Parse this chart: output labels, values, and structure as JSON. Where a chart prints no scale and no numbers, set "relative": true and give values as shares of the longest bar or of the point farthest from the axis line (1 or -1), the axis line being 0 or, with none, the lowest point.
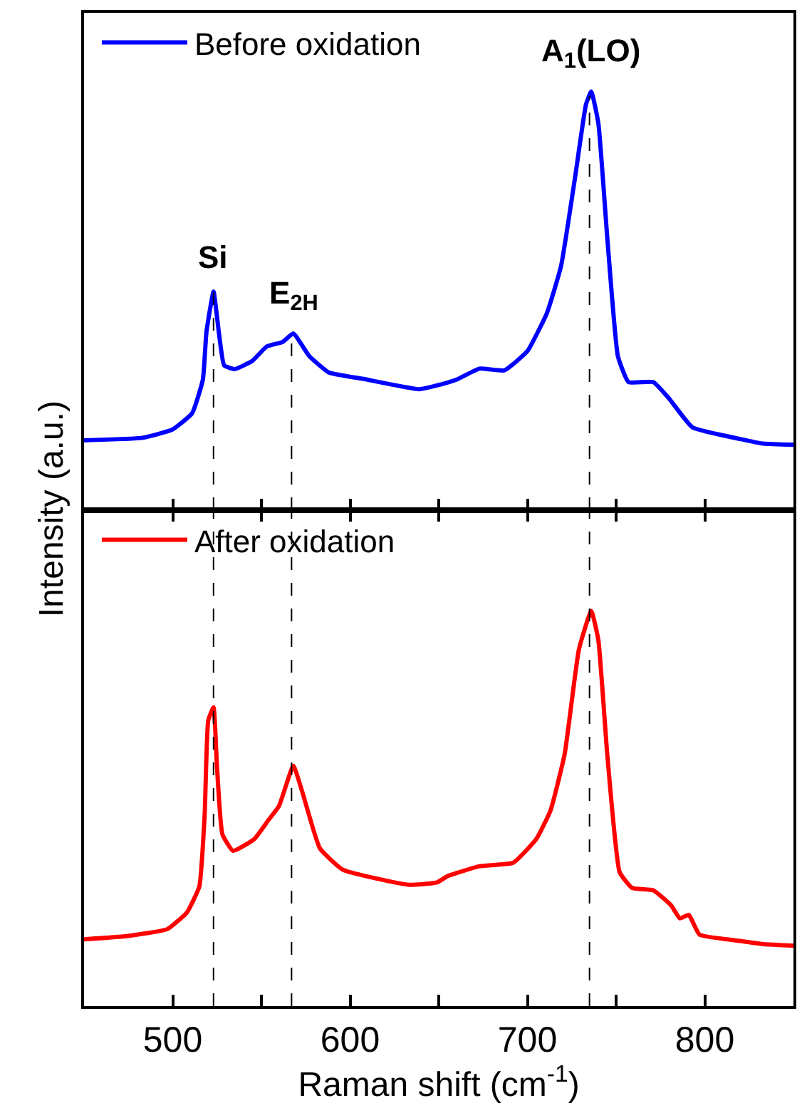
{
  "chart_data": [
    {
      "type": "line",
      "relative": true,
      "legend": "top left",
      "tick_labels": false,
      "line_style": "solid",
      "marker": "none",
      "xlim": [
        450,
        850
      ],
      "xticks": [
        500,
        {
          "value": 550,
          "label": null
        },
        600,
        {
          "value": 650,
          "label": null
        },
        700,
        {
          "value": 750,
          "label": null
        },
        800
      ],
      "ref_lines": [
        {
          "axis": "x",
          "value": 523,
          "color": "#000000",
          "line_style": "dashed"
        },
        {
          "axis": "x",
          "value": 567,
          "color": "#000000",
          "line_style": "dashed"
        },
        {
          "axis": "x",
          "value": 735,
          "color": "#000000",
          "line_style": "dashed"
        }
      ],
      "annotations": [
        {
          "text": "Si",
          "x": 523,
          "y": 0.522
        },
        {
          "text": "E$_{2H}$",
          "x": 568,
          "y": 0.422
        },
        {
          "text": "A$_{1}$(LO)",
          "x": 736,
          "y": 1.0
        }
      ],
      "ylabel": "Intensity (a.u.)",
      "series": [
        {
          "name": "Before oxidation",
          "color": "#0000ff",
          "x": [
            450,
            483,
            500,
            511,
            517,
            519,
            523,
            526,
            529,
            535,
            545,
            553,
            562,
            568,
            577,
            588,
            607,
            639,
            649,
            660,
            673,
            687,
            700,
            711,
            719,
            727,
            733,
            736,
            740,
            745,
            751,
            757,
            771,
            780,
            793,
            820,
            833,
            850
          ],
          "values": [
            0.167,
            0.173,
            0.193,
            0.232,
            0.312,
            0.425,
            0.522,
            0.425,
            0.346,
            0.337,
            0.357,
            0.391,
            0.402,
            0.422,
            0.368,
            0.329,
            0.314,
            0.289,
            0.298,
            0.312,
            0.338,
            0.334,
            0.38,
            0.471,
            0.584,
            0.799,
            0.969,
            1.0,
            0.924,
            0.652,
            0.368,
            0.306,
            0.306,
            0.266,
            0.198,
            0.17,
            0.159,
            0.156
          ]
        }
      ]
    },
    {
      "type": "line",
      "relative": true,
      "legend": "top left",
      "tick_labels": "x",
      "line_style": "solid",
      "marker": "none",
      "xlim": [
        450,
        850
      ],
      "xticks": [
        500,
        {
          "value": 550,
          "label": null
        },
        600,
        {
          "value": 650,
          "label": null
        },
        700,
        {
          "value": 750,
          "label": null
        },
        800
      ],
      "xlabel": "Raman shift (cm$^{-1}$)",
      "ref_lines": [
        {
          "axis": "x",
          "value": 523,
          "color": "#000000",
          "line_style": "dashed"
        },
        {
          "axis": "x",
          "value": 567,
          "color": "#000000",
          "line_style": "dashed"
        },
        {
          "axis": "x",
          "value": 735,
          "color": "#000000",
          "line_style": "dashed"
        }
      ],
      "series": [
        {
          "name": "After oxidation",
          "color": "#ff0000",
          "x": [
            450,
            474,
            497,
            508,
            515,
            518,
            520,
            523,
            525,
            528,
            534,
            546,
            554,
            560,
            568,
            573,
            583,
            596,
            633,
            649,
            655,
            673,
            692,
            705,
            713,
            721,
            729,
            736,
            740,
            745,
            752,
            759,
            771,
            781,
            786,
            791,
            797,
            820,
            833,
            850
          ],
          "values": [
            0.169,
            0.177,
            0.195,
            0.237,
            0.303,
            0.483,
            0.722,
            0.756,
            0.602,
            0.435,
            0.393,
            0.423,
            0.471,
            0.507,
            0.608,
            0.543,
            0.399,
            0.345,
            0.307,
            0.313,
            0.329,
            0.354,
            0.363,
            0.423,
            0.495,
            0.638,
            0.902,
            1.0,
            0.926,
            0.638,
            0.339,
            0.299,
            0.293,
            0.255,
            0.222,
            0.231,
            0.181,
            0.165,
            0.157,
            0.153
          ]
        }
      ]
    }
  ]
}
